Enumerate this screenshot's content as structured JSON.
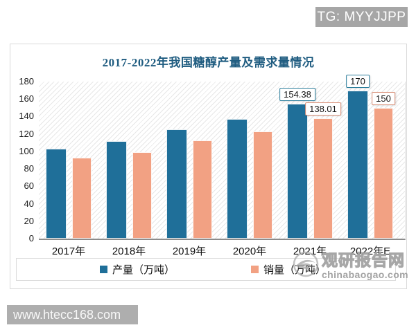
{
  "badge": {
    "text": "TG: MYYJJPP"
  },
  "site_watermark": {
    "text": "www.htecc168.com"
  },
  "brand_watermark": {
    "name": "观研报告网",
    "domain": "chinabaogao.com"
  },
  "chart_data": {
    "type": "bar",
    "title": "2017-2022年我国糖醇产量及需求量情况",
    "categories": [
      "2017年",
      "2018年",
      "2019年",
      "2020年",
      "2021年",
      "2022年E"
    ],
    "series": [
      {
        "name": "产量（万吨）",
        "color": "#1f6f99",
        "label_border": "#2d7f9d",
        "values": [
          103,
          112,
          125.5,
          137,
          154.38,
          170
        ]
      },
      {
        "name": "销量（万吨）",
        "color": "#f2a183",
        "label_border": "#d99078",
        "values": [
          92.5,
          99.5,
          112.3,
          123,
          138.01,
          150
        ]
      }
    ],
    "data_labels": [
      {
        "series": 0,
        "category": "2021年",
        "text": "154.38"
      },
      {
        "series": 1,
        "category": "2021年",
        "text": "138.01"
      },
      {
        "series": 0,
        "category": "2022年E",
        "text": "170"
      },
      {
        "series": 1,
        "category": "2022年E",
        "text": "150"
      }
    ],
    "ylim": [
      0,
      180
    ],
    "ytick_step": 20,
    "xlabel": "",
    "ylabel": "",
    "grid": false,
    "legend_position": "bottom",
    "plot_background": "diagonal-hatch"
  }
}
